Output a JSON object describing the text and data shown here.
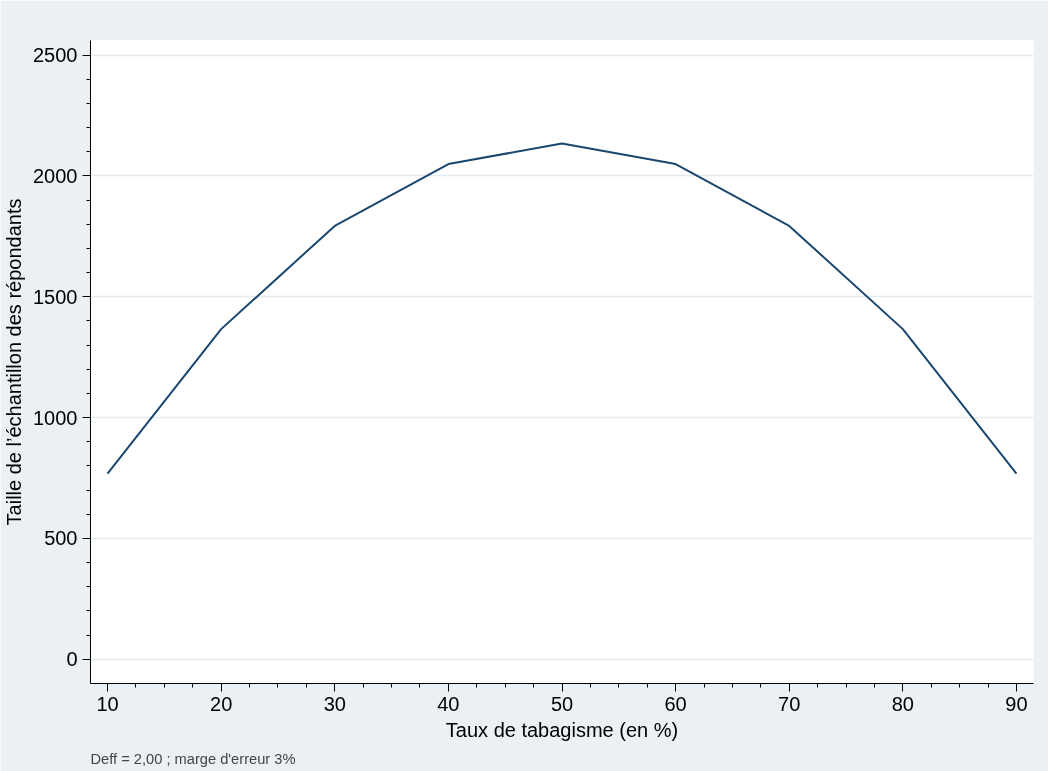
{
  "chart_data": {
    "type": "line",
    "xlabel": "Taux de tabagisme (en %)",
    "ylabel": "Taille de l’échantillon des répondants",
    "annotations": [
      "Deff = 2,00 ; marge d'erreur 3%"
    ],
    "x": [
      10,
      20,
      30,
      40,
      50,
      60,
      70,
      80,
      90
    ],
    "series": [
      {
        "color": "#1a476f",
        "values": [
          768,
          1366,
          1793,
          2049,
          2134,
          2049,
          1793,
          1366,
          768
        ]
      }
    ],
    "xlim": [
      8.5,
      91.5
    ],
    "ylim": [
      -100,
      2560
    ],
    "xticks": [
      10,
      20,
      30,
      40,
      50,
      60,
      70,
      80,
      90
    ],
    "yticks": [
      0,
      500,
      1000,
      1500,
      2000,
      2500
    ],
    "grid": "y",
    "marker": "none",
    "line_style": "solid"
  }
}
